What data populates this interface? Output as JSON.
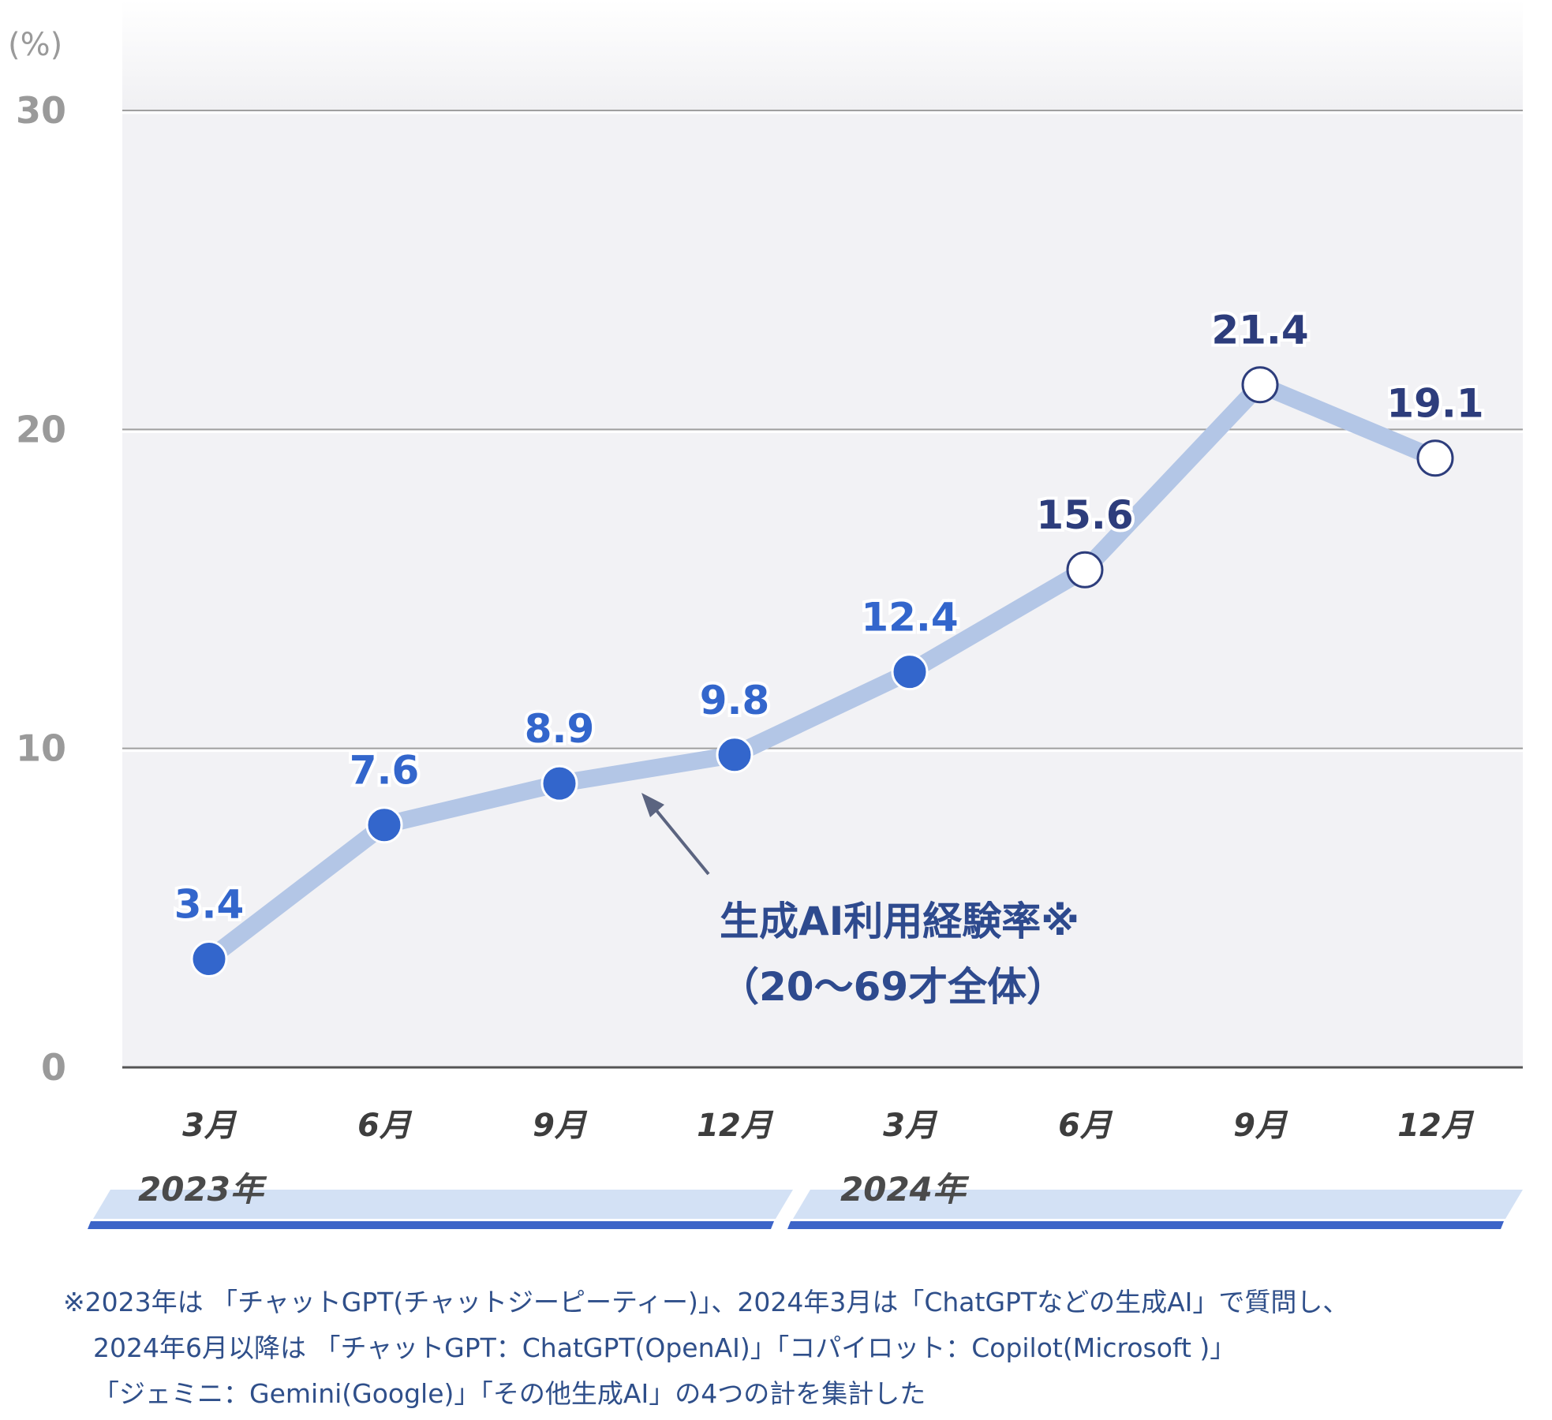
{
  "chart_data": {
    "type": "line",
    "unit_label": "(%)",
    "ylim": [
      0,
      30
    ],
    "yticks": [
      "0",
      "10",
      "20",
      "30"
    ],
    "categories": [
      "3月",
      "6月",
      "9月",
      "12月",
      "3月",
      "6月",
      "9月",
      "12月"
    ],
    "year_groups": [
      {
        "label": "2023年",
        "span": [
          0,
          3
        ]
      },
      {
        "label": "2024年",
        "span": [
          4,
          7
        ]
      }
    ],
    "series": [
      {
        "values": [
          3.4,
          7.6,
          8.9,
          9.8,
          12.4,
          15.6,
          21.4,
          19.1
        ],
        "labels": [
          "3.4",
          "7.6",
          "8.9",
          "9.8",
          "12.4",
          "15.6",
          "21.4",
          "19.1"
        ],
        "marker_style": [
          "filled",
          "filled",
          "filled",
          "filled",
          "filled",
          "open",
          "open",
          "open"
        ]
      }
    ],
    "annotation": {
      "line1": "生成AI利用経験率※",
      "line2": "（20〜69才全体）"
    },
    "grid": true,
    "colors": {
      "line": "#b3c6e6",
      "marker_filled": "#3366cc",
      "marker_open": "#ffffff",
      "marker_open_stroke": "#2d3d7c",
      "label_filled": "#3366cc",
      "label_open": "#2d3d7c",
      "plot_bg": "#f2f2f5",
      "year_band": "#d3e1f5",
      "year_band_line": "#3c64c8"
    }
  },
  "footnote": {
    "line1": "※2023年は 「チャットGPT(チャットジーピーティー)」、2024年3月は「ChatGPTなどの生成AI」で質問し、",
    "line2": "2024年6月以降は 「チャットGPT：ChatGPT(OpenAI)」「コパイロット：Copilot(Microsoft )」",
    "line3": "「ジェミニ：Gemini(Google)」「その他生成AI」の4つの計を集計した"
  }
}
